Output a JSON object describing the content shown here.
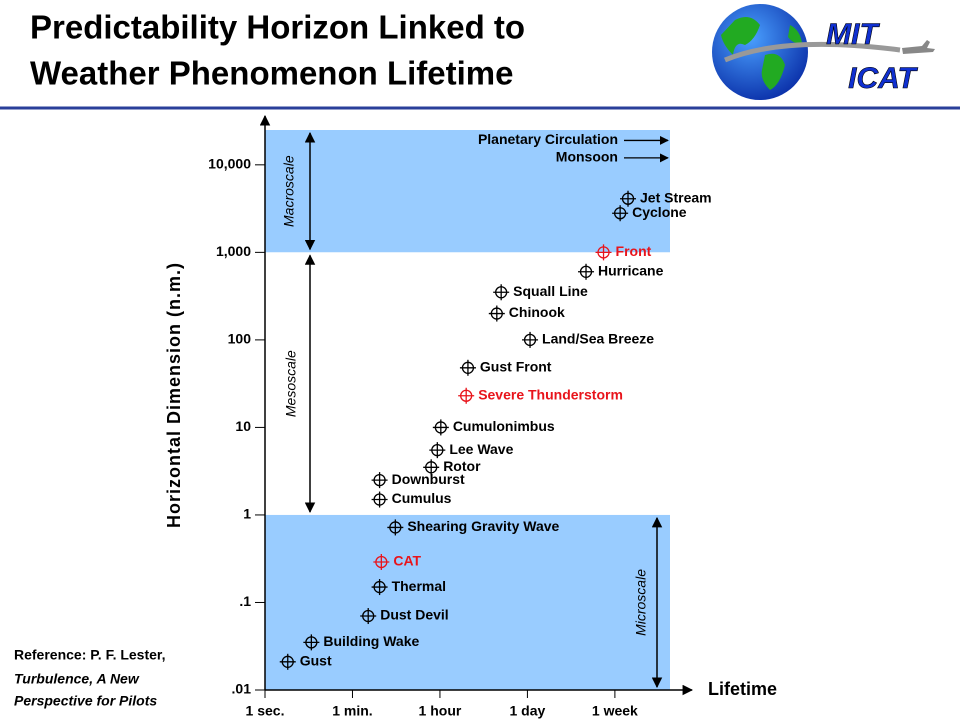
{
  "header": {
    "title_lines": [
      "Predictability Horizon Linked to",
      "Weather Phenomenon Lifetime"
    ],
    "logo_lines": [
      "MIT",
      "ICAT"
    ]
  },
  "reference_lines": [
    "Reference: P. F. Lester,",
    "Turbulence, A New",
    "Perspective for Pilots"
  ],
  "chart_data": {
    "type": "scatter",
    "y_label": "Horizontal Dimension (n.m.)",
    "x_label": "Lifetime",
    "y_log": true,
    "xlim": [
      0,
      4.63
    ],
    "ylim": [
      0.01,
      25000
    ],
    "xticks": [
      {
        "value": 0,
        "label": "1 sec."
      },
      {
        "value": 1,
        "label": "1 min."
      },
      {
        "value": 2,
        "label": "1 hour"
      },
      {
        "value": 3,
        "label": "1 day"
      },
      {
        "value": 4,
        "label": "1 week"
      }
    ],
    "yticks": [
      {
        "value": 0.01,
        "label": ".01"
      },
      {
        "value": 0.1,
        "label": ".1"
      },
      1,
      10,
      100,
      {
        "value": 1000,
        "label": "1,000"
      },
      {
        "value": 10000,
        "label": "10,000"
      }
    ],
    "bands": [
      {
        "label": "Macroscale",
        "from": 1000,
        "to": 25000,
        "color": "#99ccff"
      },
      {
        "label": "Mesoscale",
        "from": 1,
        "to": 1000,
        "color": "#ffffff"
      },
      {
        "label": "Microscale",
        "from": 0.01,
        "to": 1,
        "color": "#99ccff"
      }
    ],
    "points": [
      {
        "label": "Gust",
        "x": 0.26,
        "y": 0.021,
        "color": "#000000"
      },
      {
        "label": "Building Wake",
        "x": 0.53,
        "y": 0.035,
        "color": "#000000"
      },
      {
        "label": "Dust Devil",
        "x": 1.18,
        "y": 0.07,
        "color": "#000000"
      },
      {
        "label": "Thermal",
        "x": 1.31,
        "y": 0.15,
        "color": "#000000"
      },
      {
        "label": "CAT",
        "x": 1.33,
        "y": 0.29,
        "color": "#e8141b"
      },
      {
        "label": "Shearing Gravity Wave",
        "x": 1.49,
        "y": 0.72,
        "color": "#000000"
      },
      {
        "label": "Cumulus",
        "x": 1.31,
        "y": 1.5,
        "color": "#000000"
      },
      {
        "label": "Downburst",
        "x": 1.31,
        "y": 2.5,
        "color": "#000000"
      },
      {
        "label": "Rotor",
        "x": 1.9,
        "y": 3.5,
        "color": "#000000"
      },
      {
        "label": "Lee Wave",
        "x": 1.97,
        "y": 5.5,
        "color": "#000000"
      },
      {
        "label": "Cumulonimbus",
        "x": 2.01,
        "y": 10,
        "color": "#000000"
      },
      {
        "label": "Severe Thunderstorm",
        "x": 2.3,
        "y": 23,
        "color": "#e8141b"
      },
      {
        "label": "Gust Front",
        "x": 2.32,
        "y": 48,
        "color": "#000000"
      },
      {
        "label": "Land/Sea Breeze",
        "x": 3.03,
        "y": 100,
        "color": "#000000"
      },
      {
        "label": "Chinook",
        "x": 2.65,
        "y": 200,
        "color": "#000000"
      },
      {
        "label": "Squall Line",
        "x": 2.7,
        "y": 350,
        "color": "#000000"
      },
      {
        "label": "Hurricane",
        "x": 3.67,
        "y": 600,
        "color": "#000000"
      },
      {
        "label": "Front",
        "x": 3.87,
        "y": 1000,
        "color": "#e8141b"
      },
      {
        "label": "Cyclone",
        "x": 4.06,
        "y": 2800,
        "color": "#000000"
      },
      {
        "label": "Jet Stream",
        "x": 4.15,
        "y": 4100,
        "color": "#000000"
      }
    ],
    "offscale": [
      {
        "label": "Planetary Circulation",
        "y": 19000
      },
      {
        "label": "Monsoon",
        "y": 12000
      }
    ]
  }
}
